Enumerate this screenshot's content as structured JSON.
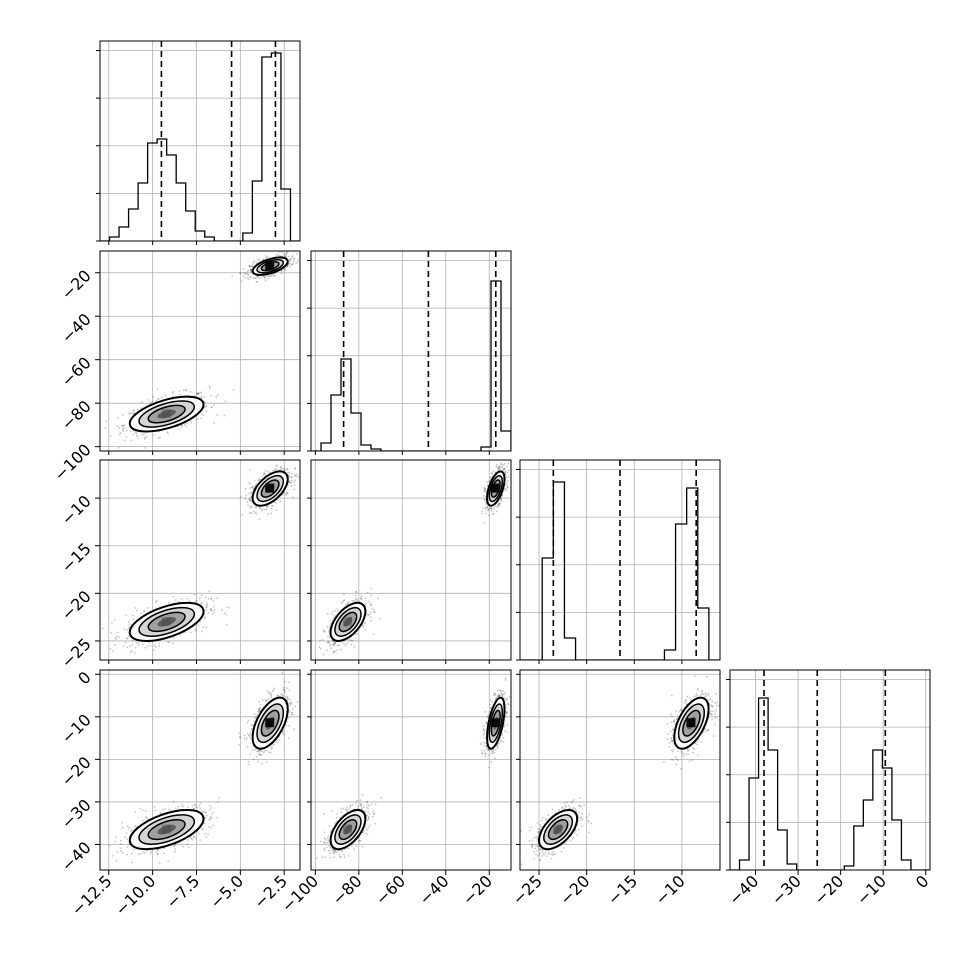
{
  "chart_data": {
    "type": "corner",
    "variables": [
      {
        "range": [
          -13.0,
          -1.6
        ],
        "ticks": [
          -12.5,
          -10.0,
          -7.5,
          -5.0,
          -2.5
        ],
        "tick_labels": [
          "−12.5",
          "−10.0",
          "−7.5",
          "−5.0",
          "−2.5"
        ],
        "quantiles": [
          -9.5,
          -5.5,
          -3.0
        ],
        "hist_counts": [
          0,
          0.02,
          0.07,
          0.16,
          0.29,
          0.49,
          0.51,
          0.43,
          0.29,
          0.15,
          0.05,
          0.02,
          0,
          0,
          0,
          0.04,
          0.3,
          0.92,
          0.94,
          0.26,
          0
        ]
      },
      {
        "range": [
          -102,
          -10
        ],
        "ticks": [
          -100,
          -80,
          -60,
          -40,
          -20
        ],
        "tick_labels": [
          "−100",
          "−80",
          "−60",
          "−40",
          "−20"
        ],
        "quantiles": [
          -87.0,
          -48.0,
          -17.0
        ],
        "hist_counts": [
          0,
          0.04,
          0.28,
          0.46,
          0.19,
          0.03,
          0.01,
          0,
          0,
          0,
          0,
          0,
          0,
          0,
          0,
          0,
          0,
          0.02,
          0.85,
          0.1
        ]
      },
      {
        "range": [
          -27,
          -6
        ],
        "ticks": [
          -25,
          -20,
          -15,
          -10
        ],
        "tick_labels": [
          "−25",
          "−20",
          "−15",
          "−10"
        ],
        "quantiles": [
          -23.5,
          -16.5,
          -8.5
        ],
        "hist_counts": [
          0,
          0,
          0.51,
          0.89,
          0.11,
          0,
          0,
          0,
          0,
          0,
          0,
          0,
          0,
          0.05,
          0.68,
          0.86,
          0.26,
          0
        ]
      },
      {
        "range": [
          -46,
          1
        ],
        "ticks": [
          -40,
          -30,
          -20,
          -10,
          0
        ],
        "tick_labels": [
          "−40",
          "−30",
          "−20",
          "−10",
          "0"
        ],
        "quantiles": [
          -38.0,
          -25.5,
          -9.5
        ],
        "hist_counts": [
          0,
          0.05,
          0.46,
          0.86,
          0.6,
          0.2,
          0.03,
          0,
          0,
          0,
          0,
          0,
          0.02,
          0.22,
          0.35,
          0.6,
          0.51,
          0.25,
          0.05,
          0,
          0
        ]
      }
    ],
    "y_tick_labels_used": [
      "0",
      "−10",
      "−15",
      "−20",
      "−25",
      "−30",
      "−40",
      "−60",
      "−80",
      "−100"
    ],
    "modes": [
      {
        "center": [
          -9.2,
          -85.0,
          -23.0,
          -36.5
        ],
        "sd": [
          1.05,
          4.0,
          1.0,
          2.3
        ]
      },
      {
        "center": [
          -3.3,
          -17.0,
          -9.0,
          -11.5
        ],
        "sd": [
          0.5,
          2.0,
          0.9,
          3.0
        ]
      }
    ],
    "grid": true,
    "title": "",
    "legend": "none"
  }
}
